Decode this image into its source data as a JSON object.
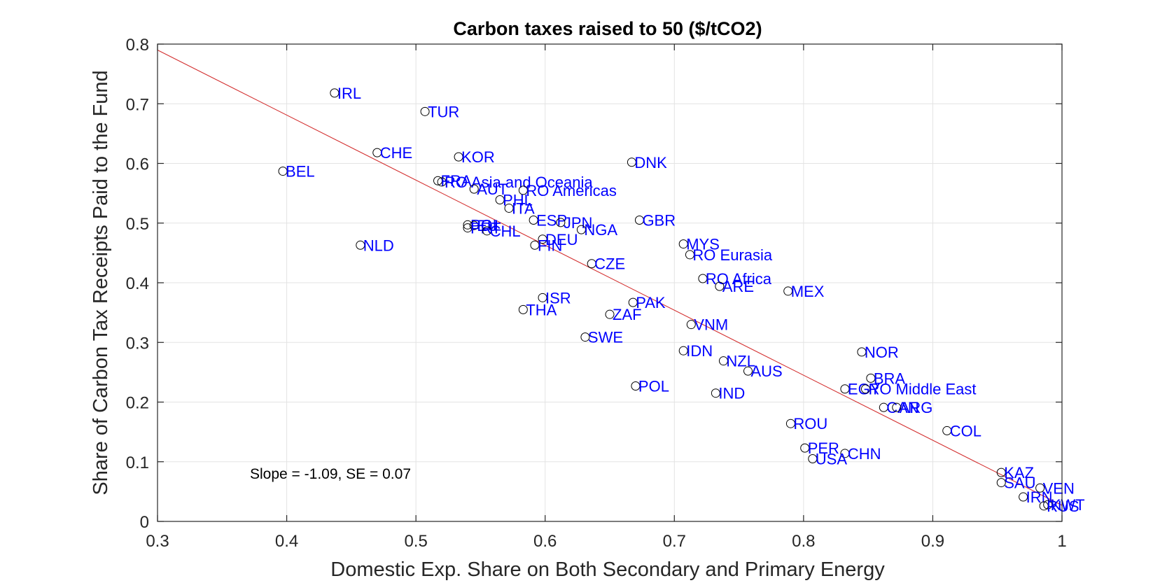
{
  "chart_data": {
    "type": "scatter",
    "title": "Carbon taxes raised to 50 ($/tCO2)",
    "xlabel": "Domestic Exp. Share on Both Secondary and Primary Energy",
    "ylabel": "Share of Carbon Tax Receipts Paid to the Fund",
    "xlim": [
      0.3,
      1.0
    ],
    "ylim": [
      0,
      0.8
    ],
    "xticks": [
      "0.3",
      "0.4",
      "0.5",
      "0.6",
      "0.7",
      "0.8",
      "0.9",
      "1"
    ],
    "yticks": [
      "0",
      "0.1",
      "0.2",
      "0.3",
      "0.4",
      "0.5",
      "0.6",
      "0.7",
      "0.8"
    ],
    "grid": true,
    "annotation": "Slope = -1.09, SE = 0.07",
    "fit_line": {
      "x": [
        0.3,
        1.0
      ],
      "y": [
        0.79,
        0.027
      ],
      "color": "#d32f2f"
    },
    "marker_color": "#000000",
    "label_color": "#0000ff",
    "points": [
      {
        "label": "IRL",
        "x": 0.437,
        "y": 0.718
      },
      {
        "label": "TUR",
        "x": 0.507,
        "y": 0.687
      },
      {
        "label": "CHE",
        "x": 0.47,
        "y": 0.618
      },
      {
        "label": "BEL",
        "x": 0.397,
        "y": 0.587
      },
      {
        "label": "KOR",
        "x": 0.533,
        "y": 0.611
      },
      {
        "label": "DNK",
        "x": 0.667,
        "y": 0.602
      },
      {
        "label": "FRA",
        "x": 0.517,
        "y": 0.571
      },
      {
        "label": "RO Asia and Oceania",
        "x": 0.52,
        "y": 0.569
      },
      {
        "label": "AUT",
        "x": 0.545,
        "y": 0.557
      },
      {
        "label": "RO Americas",
        "x": 0.583,
        "y": 0.555
      },
      {
        "label": "PHL",
        "x": 0.565,
        "y": 0.539
      },
      {
        "label": "ITA",
        "x": 0.572,
        "y": 0.525
      },
      {
        "label": "ESP",
        "x": 0.591,
        "y": 0.505
      },
      {
        "label": "GBR",
        "x": 0.673,
        "y": 0.505
      },
      {
        "label": "JPN",
        "x": 0.612,
        "y": 0.501
      },
      {
        "label": "POL",
        "x": 0.54,
        "y": 0.497
      },
      {
        "label": "EU",
        "x": 0.545,
        "y": 0.496
      },
      {
        "label": "PRT",
        "x": 0.54,
        "y": 0.492
      },
      {
        "label": "NGA",
        "x": 0.628,
        "y": 0.489
      },
      {
        "label": "CHL",
        "x": 0.555,
        "y": 0.487
      },
      {
        "label": "DEU",
        "x": 0.598,
        "y": 0.473
      },
      {
        "label": "FIN",
        "x": 0.592,
        "y": 0.463
      },
      {
        "label": "NLD",
        "x": 0.457,
        "y": 0.463
      },
      {
        "label": "MYS",
        "x": 0.707,
        "y": 0.465
      },
      {
        "label": "RO Eurasia",
        "x": 0.712,
        "y": 0.447
      },
      {
        "label": "CZE",
        "x": 0.636,
        "y": 0.432
      },
      {
        "label": "RO Africa",
        "x": 0.722,
        "y": 0.407
      },
      {
        "label": "ARE",
        "x": 0.735,
        "y": 0.394
      },
      {
        "label": "MEX",
        "x": 0.788,
        "y": 0.386
      },
      {
        "label": "ISR",
        "x": 0.598,
        "y": 0.375
      },
      {
        "label": "PAK",
        "x": 0.668,
        "y": 0.367
      },
      {
        "label": "THA",
        "x": 0.583,
        "y": 0.355
      },
      {
        "label": "ZAF",
        "x": 0.65,
        "y": 0.347
      },
      {
        "label": "VNM",
        "x": 0.713,
        "y": 0.33
      },
      {
        "label": "SWE",
        "x": 0.631,
        "y": 0.309
      },
      {
        "label": "NOR",
        "x": 0.845,
        "y": 0.284
      },
      {
        "label": "IDN",
        "x": 0.707,
        "y": 0.286
      },
      {
        "label": "NZL",
        "x": 0.738,
        "y": 0.269
      },
      {
        "label": "AUS",
        "x": 0.757,
        "y": 0.252
      },
      {
        "label": "BRA",
        "x": 0.852,
        "y": 0.24
      },
      {
        "label": "POL",
        "x": 0.67,
        "y": 0.227
      },
      {
        "label": "EGY",
        "x": 0.832,
        "y": 0.222
      },
      {
        "label": "RO Middle East",
        "x": 0.848,
        "y": 0.222
      },
      {
        "label": "IND",
        "x": 0.732,
        "y": 0.215
      },
      {
        "label": "CAN",
        "x": 0.862,
        "y": 0.191
      },
      {
        "label": "ARG",
        "x": 0.872,
        "y": 0.191
      },
      {
        "label": "ROU",
        "x": 0.79,
        "y": 0.164
      },
      {
        "label": "COL",
        "x": 0.911,
        "y": 0.152
      },
      {
        "label": "PER",
        "x": 0.801,
        "y": 0.123
      },
      {
        "label": "CHN",
        "x": 0.832,
        "y": 0.114
      },
      {
        "label": "USA",
        "x": 0.807,
        "y": 0.105
      },
      {
        "label": "KAZ",
        "x": 0.953,
        "y": 0.082
      },
      {
        "label": "SAU",
        "x": 0.953,
        "y": 0.065
      },
      {
        "label": "VEN",
        "x": 0.983,
        "y": 0.056
      },
      {
        "label": "IRN",
        "x": 0.97,
        "y": 0.041
      },
      {
        "label": "KWT",
        "x": 0.989,
        "y": 0.028
      },
      {
        "label": "RUS",
        "x": 0.986,
        "y": 0.026
      }
    ]
  }
}
